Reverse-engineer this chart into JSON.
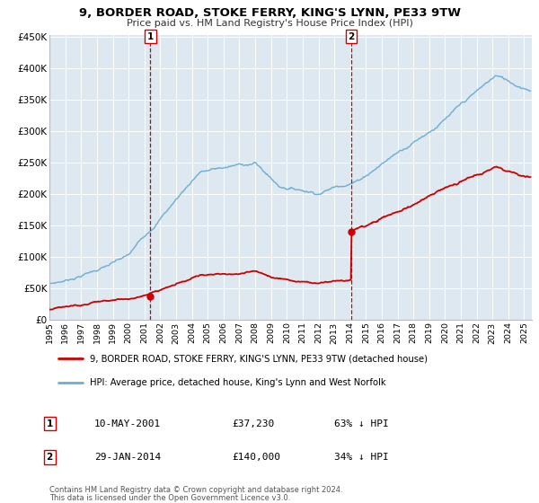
{
  "title": "9, BORDER ROAD, STOKE FERRY, KING'S LYNN, PE33 9TW",
  "subtitle": "Price paid vs. HM Land Registry's House Price Index (HPI)",
  "hpi_color": "#6baed6",
  "price_color": "#cc0000",
  "bg_color": "#dde8f0",
  "vline_color": "#cc0000",
  "sale1_year": 2001.37,
  "sale1_price": 37230,
  "sale2_year": 2014.08,
  "sale2_price": 140000,
  "ylabel_max": 450000,
  "xmin": 1995.0,
  "xmax": 2025.5,
  "legend_entry1": "9, BORDER ROAD, STOKE FERRY, KING'S LYNN, PE33 9TW (detached house)",
  "legend_entry2": "HPI: Average price, detached house, King's Lynn and West Norfolk",
  "sale1_date": "10-MAY-2001",
  "sale1_amt": "£37,230",
  "sale1_pct": "63% ↓ HPI",
  "sale2_date": "29-JAN-2014",
  "sale2_amt": "£140,000",
  "sale2_pct": "34% ↓ HPI",
  "footnote1": "Contains HM Land Registry data © Crown copyright and database right 2024.",
  "footnote2": "This data is licensed under the Open Government Licence v3.0."
}
